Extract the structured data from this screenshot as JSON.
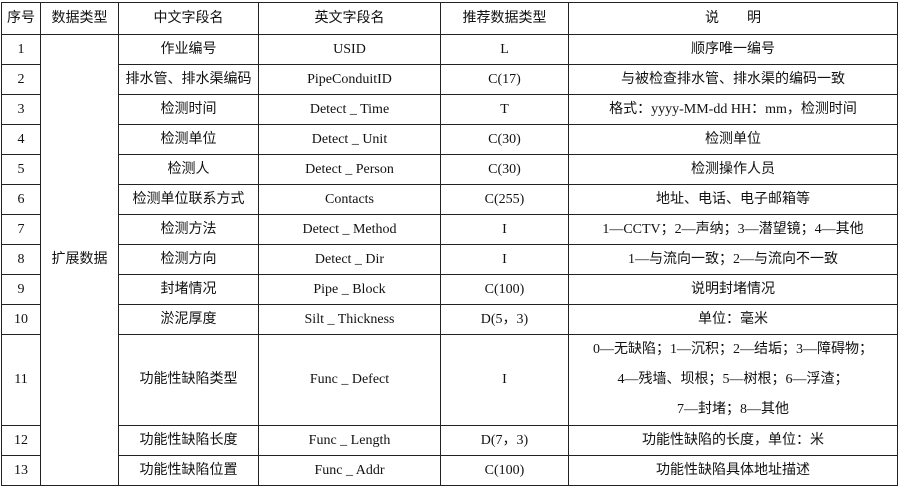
{
  "headers": [
    "序号",
    "数据类型",
    "中文字段名",
    "英文字段名",
    "推荐数据类型",
    "说　　明"
  ],
  "group_label": "扩展数据",
  "rows": [
    {
      "no": "1",
      "cn": "作业编号",
      "en": "USID",
      "type": "L",
      "desc": "顺序唯一编号"
    },
    {
      "no": "2",
      "cn": "排水管、排水渠编码",
      "en": "PipeConduitID",
      "type": "C(17)",
      "desc": "与被检查排水管、排水渠的编码一致"
    },
    {
      "no": "3",
      "cn": "检测时间",
      "en": "Detect _ Time",
      "type": "T",
      "desc": "格式：yyyy-MM-dd HH：mm，检测时间"
    },
    {
      "no": "4",
      "cn": "检测单位",
      "en": "Detect _ Unit",
      "type": "C(30)",
      "desc": "检测单位"
    },
    {
      "no": "5",
      "cn": "检测人",
      "en": "Detect _ Person",
      "type": "C(30)",
      "desc": "检测操作人员"
    },
    {
      "no": "6",
      "cn": "检测单位联系方式",
      "en": "Contacts",
      "type": "C(255)",
      "desc": "地址、电话、电子邮箱等"
    },
    {
      "no": "7",
      "cn": "检测方法",
      "en": "Detect _ Method",
      "type": "I",
      "desc": "1—CCTV；2—声纳；3—潜望镜；4—其他"
    },
    {
      "no": "8",
      "cn": "检测方向",
      "en": "Detect _ Dir",
      "type": "I",
      "desc": "1—与流向一致；2—与流向不一致"
    },
    {
      "no": "9",
      "cn": "封堵情况",
      "en": "Pipe _ Block",
      "type": "C(100)",
      "desc": "说明封堵情况"
    },
    {
      "no": "10",
      "cn": "淤泥厚度",
      "en": "Silt _ Thickness",
      "type": "D(5，3)",
      "desc": "单位：毫米"
    },
    {
      "no": "11",
      "cn": "功能性缺陷类型",
      "en": "Func _ Defect",
      "type": "I",
      "desc_lines": [
        "0—无缺陷；1—沉积；2—结垢；3—障碍物；",
        "4—残墙、坝根；5—树根；6—浮渣；",
        "7—封堵；8—其他"
      ]
    },
    {
      "no": "12",
      "cn": "功能性缺陷长度",
      "en": "Func _ Length",
      "type": "D(7，3)",
      "desc": "功能性缺陷的长度，单位：米"
    },
    {
      "no": "13",
      "cn": "功能性缺陷位置",
      "en": "Func _ Addr",
      "type": "C(100)",
      "desc": "功能性缺陷具体地址描述"
    }
  ]
}
